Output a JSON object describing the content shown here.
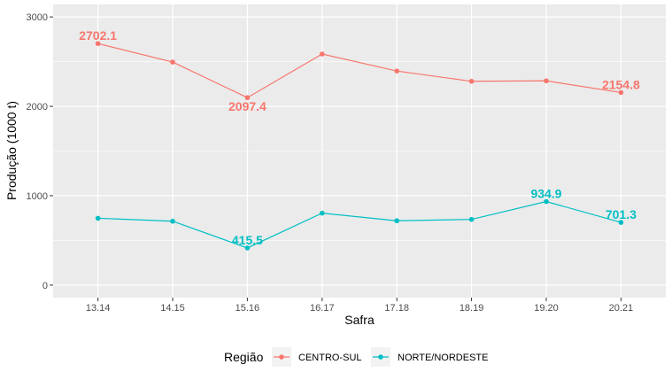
{
  "chart_data": {
    "type": "line",
    "categories": [
      "13.14",
      "14.15",
      "15.16",
      "16.17",
      "17.18",
      "18.19",
      "19.20",
      "20.21"
    ],
    "series": [
      {
        "name": "CENTRO-SUL",
        "color": "#F8766D",
        "values": [
          2702.1,
          2495,
          2097.4,
          2585,
          2395,
          2280,
          2285,
          2154.8
        ],
        "labels": [
          {
            "index": 0,
            "text": "2702.1",
            "position": "above"
          },
          {
            "index": 2,
            "text": "2097.4",
            "position": "below"
          },
          {
            "index": 7,
            "text": "2154.8",
            "position": "above"
          }
        ]
      },
      {
        "name": "NORTE/NORDESTE",
        "color": "#00BFC4",
        "values": [
          748,
          715,
          415.5,
          805,
          720,
          735,
          934.9,
          701.3
        ],
        "labels": [
          {
            "index": 2,
            "text": "415.5",
            "position": "above"
          },
          {
            "index": 6,
            "text": "934.9",
            "position": "above"
          },
          {
            "index": 7,
            "text": "701.3",
            "position": "above"
          }
        ]
      }
    ],
    "xlabel": "Safra",
    "ylabel": "Produção (1000 t)",
    "ylim": [
      -140,
      3140
    ],
    "yticks": [
      0,
      1000,
      2000,
      3000
    ],
    "grid": true,
    "legend": {
      "title": "Região",
      "placement": "bottom"
    }
  }
}
